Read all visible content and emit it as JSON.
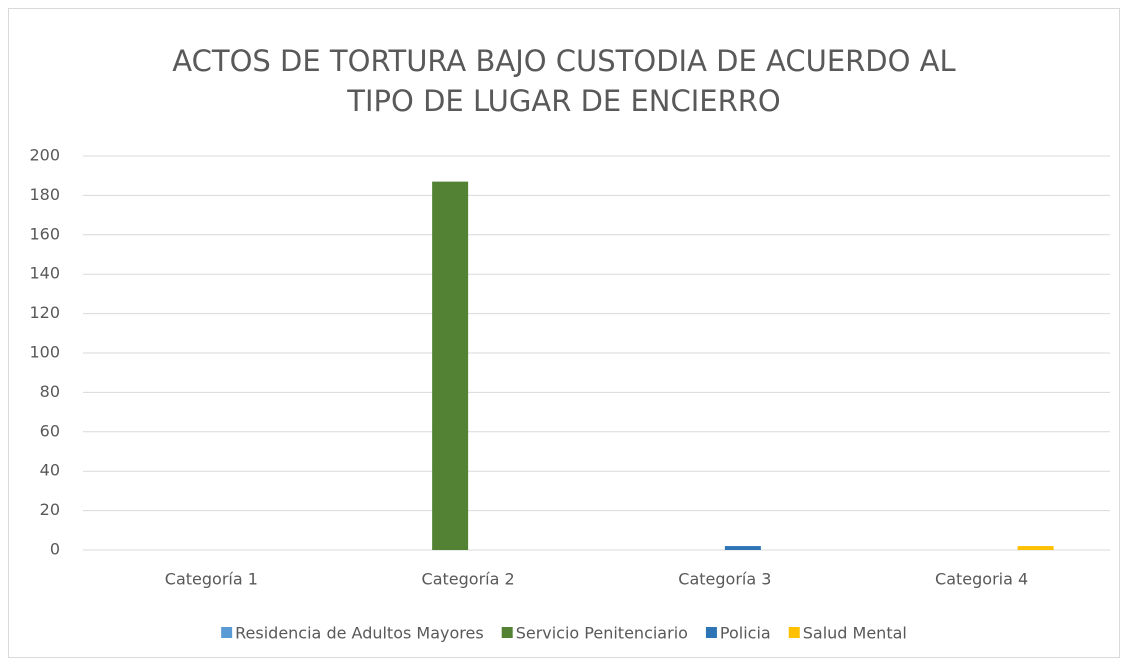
{
  "chart_data": {
    "type": "bar",
    "title": [
      "ACTOS DE TORTURA BAJO CUSTODIA DE ACUERDO AL",
      "TIPO DE LUGAR DE ENCIERRO"
    ],
    "categories": [
      "Categoría 1",
      "Categoría 2",
      "Categoría 3",
      "Categoria 4"
    ],
    "series": [
      {
        "name": "Residencia de Adultos Mayores",
        "color": "#5B9BD5",
        "values": [
          0,
          0,
          0,
          0
        ]
      },
      {
        "name": "Servicio Penitenciario",
        "color": "#548235",
        "values": [
          0,
          187,
          0,
          0
        ]
      },
      {
        "name": "Policia",
        "color": "#2E75B6",
        "values": [
          0,
          0,
          2,
          0
        ]
      },
      {
        "name": "Salud Mental",
        "color": "#FFC000",
        "values": [
          0,
          0,
          0,
          2
        ]
      }
    ],
    "ylim": [
      0,
      200
    ],
    "yticks": [
      0,
      20,
      40,
      60,
      80,
      100,
      120,
      140,
      160,
      180,
      200
    ],
    "grid": true,
    "legend": "bottom"
  }
}
